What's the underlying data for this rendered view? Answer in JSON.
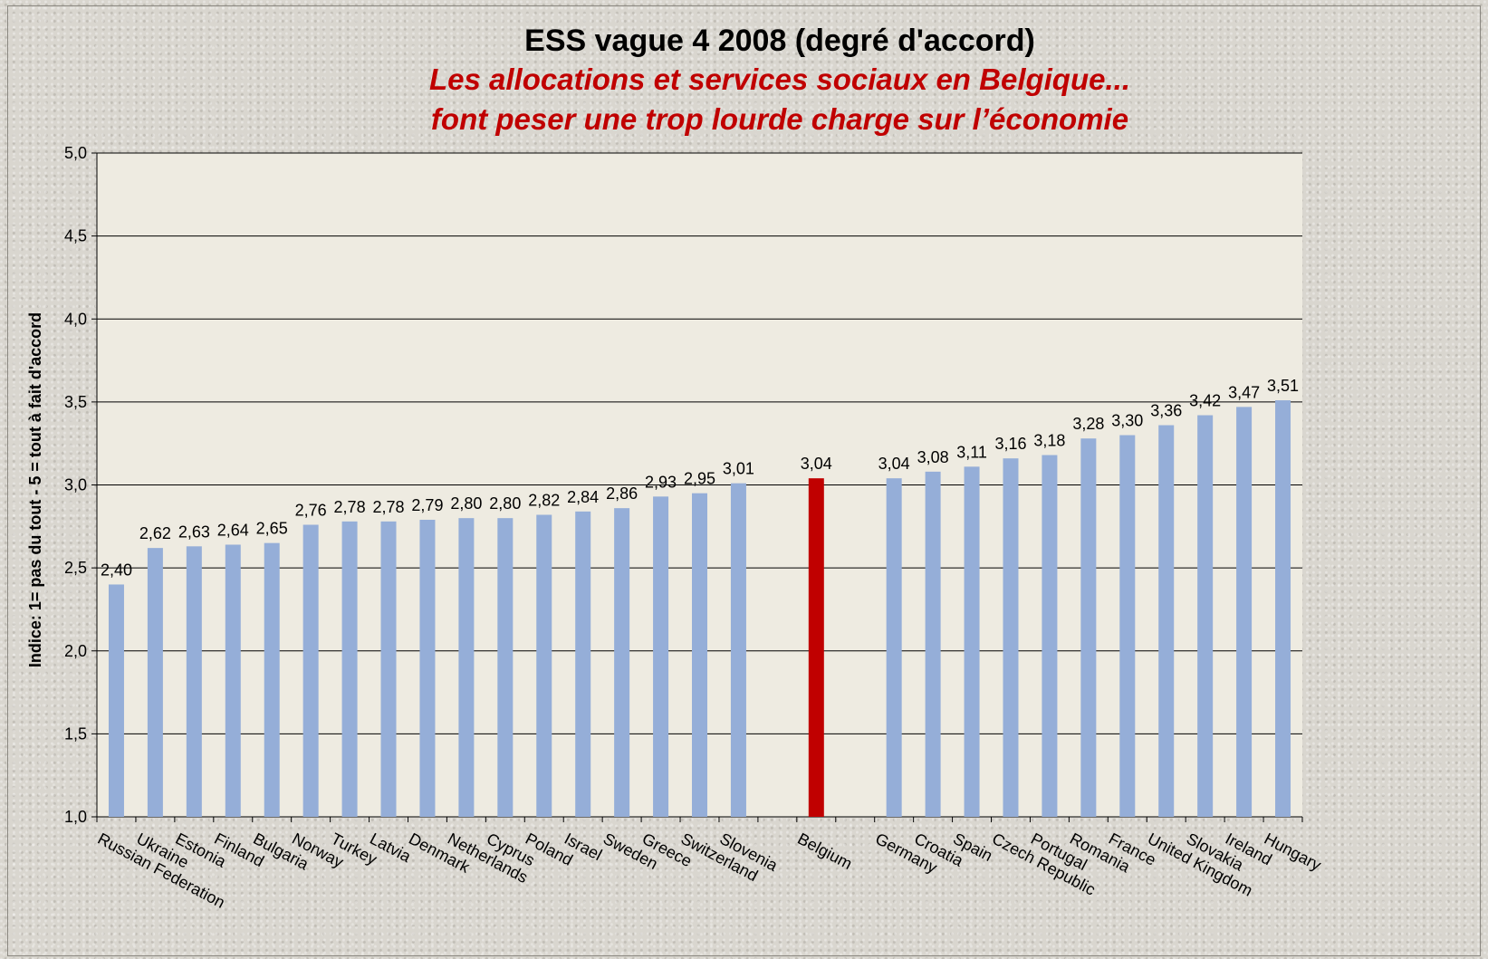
{
  "chart_data": {
    "type": "bar",
    "title": "ESS vague 4 2008 (degré d'accord)",
    "subtitle": [
      "Les allocations et services sociaux en Belgique...",
      "font peser une trop lourde charge sur l’économie"
    ],
    "ylabel": "Indice: 1= pas du tout - 5 = tout à fait d'accord",
    "xlabel": "",
    "ylim": [
      1.0,
      5.0
    ],
    "yticks": [
      "1,0",
      "1,5",
      "2,0",
      "2,5",
      "3,0",
      "3,5",
      "4,0",
      "4,5",
      "5,0"
    ],
    "grid": true,
    "categories": [
      "Russian Federation",
      "Ukraine",
      "Estonia",
      "Finland",
      "Bulgaria",
      "Norway",
      "Turkey",
      "Latvia",
      "Denmark",
      "Netherlands",
      "Cyprus",
      "Poland",
      "Israel",
      "Sweden",
      "Greece",
      "Switzerland",
      "Slovenia",
      "",
      "Belgium",
      "",
      "Germany",
      "Croatia",
      "Spain",
      "Czech Republic",
      "Portugal",
      "Romania",
      "France",
      "United Kingdom",
      "Slovakia",
      "Ireland",
      "Hungary"
    ],
    "values": [
      2.4,
      2.62,
      2.63,
      2.64,
      2.65,
      2.76,
      2.78,
      2.78,
      2.79,
      2.8,
      2.8,
      2.82,
      2.84,
      2.86,
      2.93,
      2.95,
      3.01,
      null,
      3.04,
      null,
      3.04,
      3.08,
      3.11,
      3.16,
      3.18,
      3.28,
      3.3,
      3.36,
      3.42,
      3.47,
      3.51
    ],
    "value_labels": [
      "2,40",
      "2,62",
      "2,63",
      "2,64",
      "2,65",
      "2,76",
      "2,78",
      "2,78",
      "2,79",
      "2,80",
      "2,80",
      "2,82",
      "2,84",
      "2,86",
      "2,93",
      "2,95",
      "3,01",
      "",
      "3,04",
      "",
      "3,04",
      "3,08",
      "3,11",
      "3,16",
      "3,18",
      "3,28",
      "3,30",
      "3,36",
      "3,42",
      "3,47",
      "3,51"
    ],
    "highlight": "Belgium",
    "colors": {
      "bar": "#95aed8",
      "highlight": "#c00000",
      "plot_background": "#eeebe1",
      "gridline": "#000000"
    }
  }
}
